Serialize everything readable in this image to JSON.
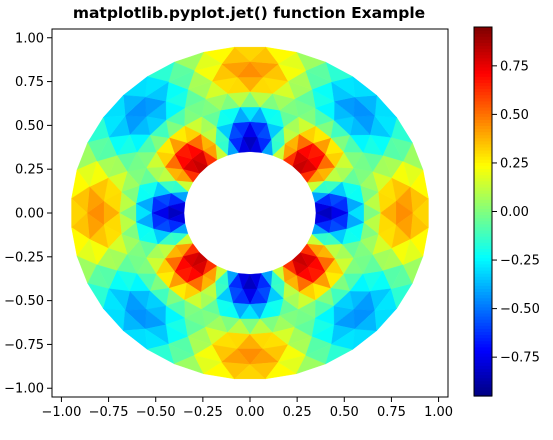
{
  "chart_data": {
    "type": "heatmap",
    "subtype": "tripcolor",
    "title": "matplotlib.pyplot.jet() function Example",
    "colormap": "jet",
    "xlim": [
      -1.05,
      1.05
    ],
    "ylim": [
      -1.05,
      1.05
    ],
    "xticks": [
      -1.0,
      -0.75,
      -0.5,
      -0.25,
      0.0,
      0.25,
      0.5,
      0.75,
      1.0
    ],
    "yticks": [
      -1.0,
      -0.75,
      -0.5,
      -0.25,
      0.0,
      0.25,
      0.5,
      0.75,
      1.0
    ],
    "xtick_labels": [
      "−1.00",
      "−0.75",
      "−0.50",
      "−0.25",
      "0.00",
      "0.25",
      "0.50",
      "0.75",
      "1.00"
    ],
    "ytick_labels": [
      "−1.00",
      "−0.75",
      "−0.50",
      "−0.25",
      "0.00",
      "0.25",
      "0.50",
      "0.75",
      "1.00"
    ],
    "annulus": {
      "inner_radius": 0.35,
      "outer_radius": 0.95,
      "n_radii": 8,
      "n_angles": 36
    },
    "value_function": "cos(r/0.35*2.6)*cos(4*theta) * max(0.15, 1.32 - r)",
    "color_range": [
      -0.95,
      0.95
    ],
    "grid": false,
    "colorbar": {
      "position": "right",
      "ticks": [
        0.75,
        0.5,
        0.25,
        0.0,
        -0.25,
        -0.5,
        -0.75
      ],
      "tick_labels": [
        "0.75",
        "0.50",
        "0.25",
        "0.00",
        "−0.25",
        "−0.50",
        "−0.75"
      ]
    }
  }
}
